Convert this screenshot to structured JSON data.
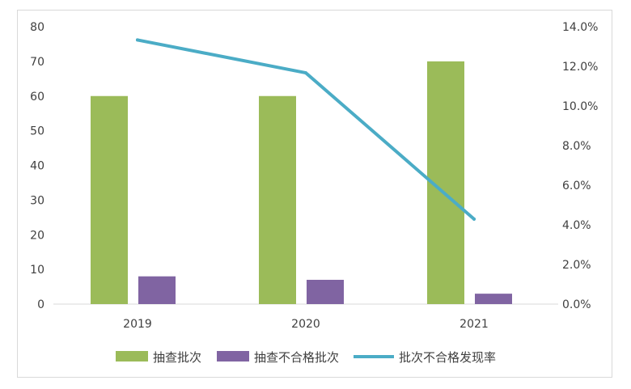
{
  "chart_data": {
    "type": "bar",
    "categories": [
      "2019",
      "2020",
      "2021"
    ],
    "series": [
      {
        "name": "抽查批次",
        "kind": "bar",
        "axis": "left",
        "color": "#9bbb59",
        "values": [
          60,
          60,
          70
        ]
      },
      {
        "name": "抽查不合格批次",
        "kind": "bar",
        "axis": "left",
        "color": "#8064a2",
        "values": [
          8,
          7,
          3
        ]
      },
      {
        "name": "批次不合格发现率",
        "kind": "line",
        "axis": "right",
        "color": "#4bacc6",
        "values": [
          0.1333,
          0.1167,
          0.0429
        ]
      }
    ],
    "y_left": {
      "min": 0,
      "max": 80,
      "step": 10,
      "ticks": [
        "0",
        "10",
        "20",
        "30",
        "40",
        "50",
        "60",
        "70",
        "80"
      ]
    },
    "y_right": {
      "min": 0,
      "max": 0.14,
      "step": 0.02,
      "ticks": [
        "0.0%",
        "2.0%",
        "4.0%",
        "6.0%",
        "8.0%",
        "10.0%",
        "12.0%",
        "14.0%"
      ]
    },
    "grid": false,
    "legend_position": "bottom"
  }
}
